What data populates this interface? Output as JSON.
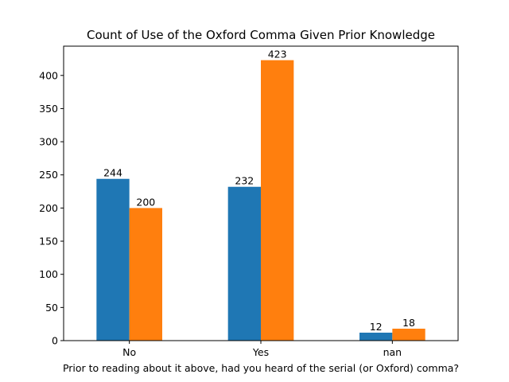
{
  "chart_data": {
    "type": "bar",
    "title": "Count of Use of the Oxford Comma Given Prior Knowledge",
    "xlabel": "Prior to reading about it above, had you heard of the serial (or Oxford) comma?",
    "ylabel": "",
    "categories": [
      "No",
      "Yes",
      "nan"
    ],
    "series": [
      {
        "color": "#1f77b4",
        "values": [
          244,
          232,
          12
        ]
      },
      {
        "color": "#ff7f0e",
        "values": [
          200,
          423,
          18
        ]
      }
    ],
    "ylim": [
      0,
      444.15
    ],
    "yticks": [
      0,
      50,
      100,
      150,
      200,
      250,
      300,
      350,
      400
    ],
    "grid": false,
    "legend": "none"
  }
}
